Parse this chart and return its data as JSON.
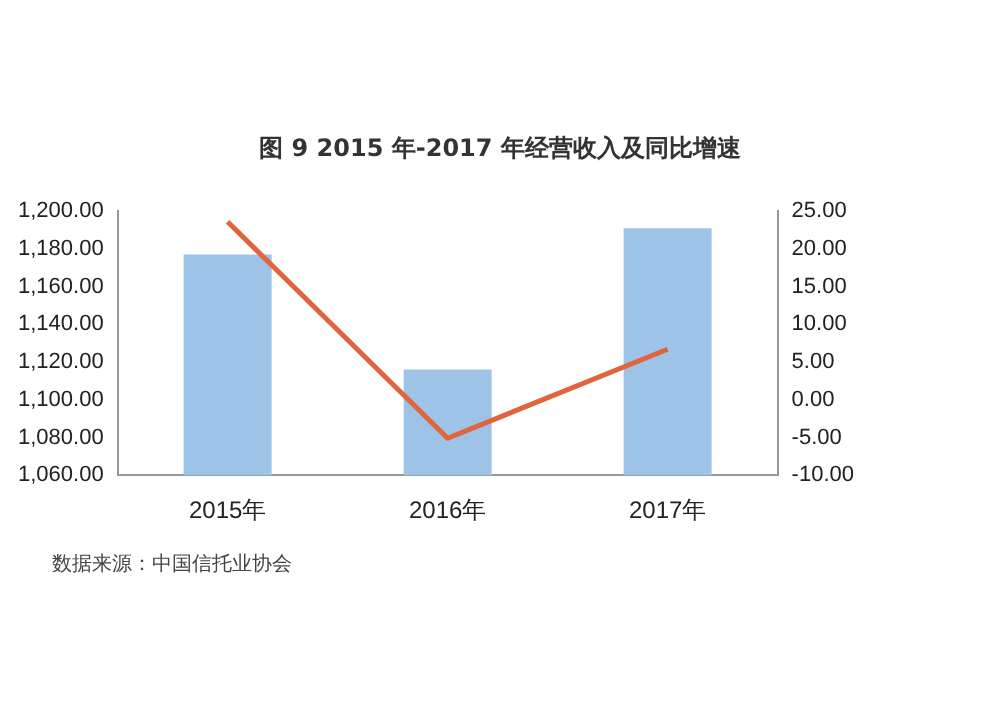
{
  "chart_data": {
    "type": "bar",
    "title": "图 9  2015 年-2017 年经营收入及同比增速",
    "categories": [
      "2015年",
      "2016年",
      "2017年"
    ],
    "series": [
      {
        "color": "#9dc3e6",
        "values": [
          1177,
          1116,
          1191
        ]
      },
      {
        "type": "line",
        "axis": "y2",
        "color": "#e0643c",
        "values": [
          23.6,
          -5.1,
          6.7
        ],
        "marker": "none"
      }
    ],
    "ylim": [
      1060,
      1200
    ],
    "yticks": [
      {
        "value": 1060,
        "label": "1,060.00"
      },
      {
        "value": 1080,
        "label": "1,080.00"
      },
      {
        "value": 1100,
        "label": "1,100.00"
      },
      {
        "value": 1120,
        "label": "1,120.00"
      },
      {
        "value": 1140,
        "label": "1,140.00"
      },
      {
        "value": 1160,
        "label": "1,160.00"
      },
      {
        "value": 1180,
        "label": "1,180.00"
      },
      {
        "value": 1200,
        "label": "1,200.00"
      }
    ],
    "y2lim": [
      -10,
      25
    ],
    "y2ticks": [
      {
        "value": -10,
        "label": "-10.00"
      },
      {
        "value": -5,
        "label": "-5.00"
      },
      {
        "value": 0,
        "label": "0.00"
      },
      {
        "value": 5,
        "label": "5.00"
      },
      {
        "value": 10,
        "label": "10.00"
      },
      {
        "value": 15,
        "label": "15.00"
      },
      {
        "value": 20,
        "label": "20.00"
      },
      {
        "value": 25,
        "label": "25.00"
      }
    ],
    "grid": false,
    "legend": false,
    "annotations": [
      "数据来源：中国信托业协会"
    ]
  }
}
